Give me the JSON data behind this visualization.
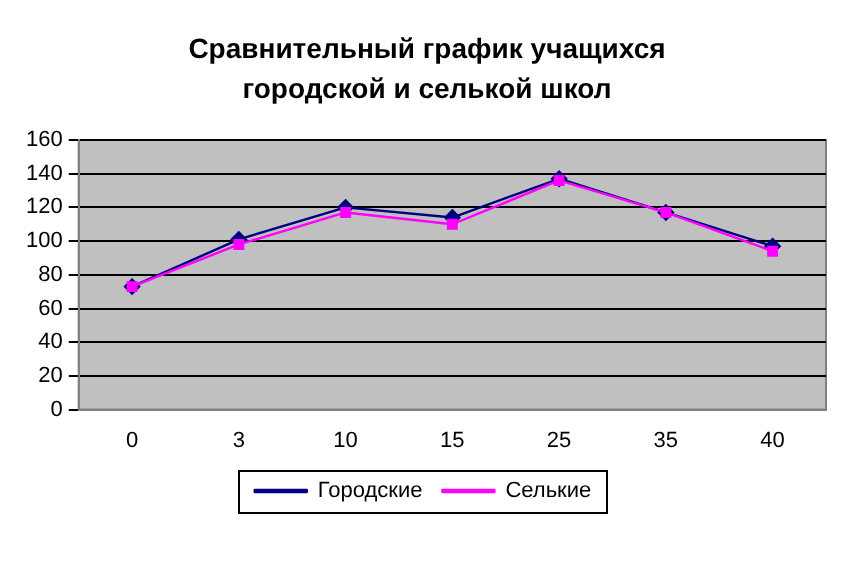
{
  "chart_data": {
    "type": "line",
    "title": "Сравнительный график учащихся городской и селькой школ",
    "categories": [
      "0",
      "3",
      "10",
      "15",
      "25",
      "35",
      "40"
    ],
    "series": [
      {
        "name": "Городские",
        "color": "#000080",
        "marker": "diamond",
        "values": [
          73,
          101,
          120,
          114,
          137,
          117,
          97
        ]
      },
      {
        "name": "Селькие",
        "color": "#ff00ff",
        "marker": "square",
        "values": [
          73,
          98,
          117,
          110,
          136,
          117,
          94
        ]
      }
    ],
    "ylim": [
      0,
      160
    ],
    "yticks": [
      0,
      20,
      40,
      60,
      80,
      100,
      120,
      140,
      160
    ],
    "grid": "y",
    "legend": "bottom"
  }
}
